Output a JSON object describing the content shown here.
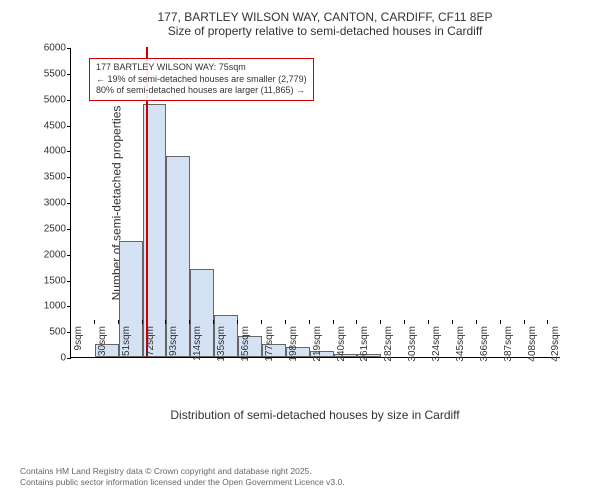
{
  "chart": {
    "type": "histogram",
    "title_line1": "177, BARTLEY WILSON WAY, CANTON, CARDIFF, CF11 8EP",
    "title_line2": "Size of property relative to semi-detached houses in Cardiff",
    "y_axis_label": "Number of semi-detached properties",
    "x_axis_label": "Distribution of semi-detached houses by size in Cardiff",
    "ylim_max": 6000,
    "y_ticks": [
      0,
      500,
      1000,
      1500,
      2000,
      2500,
      3000,
      3500,
      4000,
      4500,
      5000,
      5500,
      6000
    ],
    "x_tick_labels": [
      "9sqm",
      "30sqm",
      "51sqm",
      "72sqm",
      "93sqm",
      "114sqm",
      "135sqm",
      "156sqm",
      "177sqm",
      "198sqm",
      "219sqm",
      "240sqm",
      "261sqm",
      "282sqm",
      "303sqm",
      "324sqm",
      "345sqm",
      "366sqm",
      "387sqm",
      "408sqm",
      "429sqm"
    ],
    "bars": [
      {
        "x": 30,
        "value": 250
      },
      {
        "x": 51,
        "value": 2250
      },
      {
        "x": 72,
        "value": 4900
      },
      {
        "x": 93,
        "value": 3900
      },
      {
        "x": 114,
        "value": 1700
      },
      {
        "x": 135,
        "value": 820
      },
      {
        "x": 156,
        "value": 400
      },
      {
        "x": 177,
        "value": 250
      },
      {
        "x": 198,
        "value": 200
      },
      {
        "x": 219,
        "value": 120
      },
      {
        "x": 240,
        "value": 60
      },
      {
        "x": 261,
        "value": 50
      }
    ],
    "bar_fill": "#d4e2f4",
    "bar_border": "#666666",
    "marker_x": 75,
    "marker_color": "#cc0000",
    "annotation": {
      "line1": "177 BARTLEY WILSON WAY: 75sqm",
      "line2": "← 19% of semi-detached houses are smaller (2,779)",
      "line3": "80% of semi-detached houses are larger (11,865) →",
      "border_color": "#cc0000"
    },
    "background_color": "#ffffff",
    "x_min": 9,
    "x_max": 440,
    "bar_width_sqm": 21
  },
  "footer": {
    "line1": "Contains HM Land Registry data © Crown copyright and database right 2025.",
    "line2": "Contains public sector information licensed under the Open Government Licence v3.0."
  }
}
